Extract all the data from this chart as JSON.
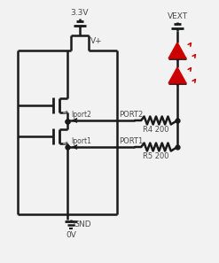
{
  "bg_color": "#f2f2f2",
  "line_color": "#1a1a1a",
  "red_color": "#cc0000",
  "text_color": "#4a4a4a",
  "gray_color": "#888888",
  "vext_label": "VEXT",
  "v33_label": "3.3V",
  "vplus_label": "V+",
  "gnd_label": "GND",
  "ov_label": "0V",
  "port2_label": "PORT2",
  "port1_label": "PORT1",
  "r4_label": "R4 200",
  "r5_label": "R5 200",
  "iport2_label": "Iport2",
  "iport1_label": "Iport1"
}
